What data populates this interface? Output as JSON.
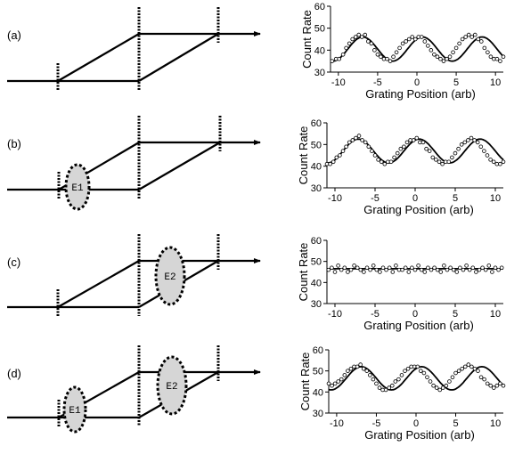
{
  "panels": [
    {
      "label": "(a)",
      "elements": [],
      "chart_data": {
        "type": "scatter",
        "xlabel": "Grating Position (arb)",
        "ylabel": "Count Rate",
        "xlim": [
          -11,
          11
        ],
        "ylim": [
          30,
          60
        ],
        "xticks": [
          "-10",
          "-5",
          "0",
          "5",
          "10"
        ],
        "yticks": [
          "30",
          "40",
          "50",
          "60"
        ],
        "fit": {
          "kind": "sinusoid",
          "mean": 40.5,
          "amplitude": 5.5,
          "period": 7.6,
          "phase_peak_x": 0.7
        },
        "series": [
          {
            "x": [
              -10.8,
              -10.3,
              -9.9,
              -9.4,
              -9,
              -8.6,
              -8.2,
              -7.8,
              -7.4,
              -7,
              -6.6,
              -6.2,
              -5.8,
              -5.4,
              -5,
              -4.6,
              -4.2,
              -3.8,
              -3.4,
              -3,
              -2.6,
              -2.2,
              -1.8,
              -1.4,
              -1,
              -0.6,
              -0.2,
              0.2,
              0.6,
              1,
              1.4,
              1.8,
              2.2,
              2.6,
              3,
              3.4,
              3.8,
              4.2,
              4.6,
              5,
              5.4,
              5.8,
              6.2,
              6.6,
              7,
              7.4,
              7.8,
              8.2,
              8.6,
              9,
              9.4,
              9.8,
              10.2,
              10.6,
              11
            ],
            "y": [
              35,
              36,
              36,
              38,
              41,
              43,
              45,
              46,
              47,
              46,
              47,
              44,
              43,
              40,
              38,
              37,
              36,
              36,
              35,
              37,
              39,
              41,
              43,
              44,
              45,
              46,
              45,
              46,
              46,
              44,
              42,
              40,
              38,
              37,
              36,
              35,
              36,
              37,
              39,
              41,
              43,
              45,
              46,
              47,
              46,
              47,
              45,
              44,
              41,
              39,
              37,
              36,
              36,
              35,
              37
            ]
          }
        ]
      }
    },
    {
      "label": "(b)",
      "elements": [
        {
          "label": "E1"
        }
      ],
      "chart_data": {
        "type": "scatter",
        "xlabel": "Grating Position (arb)",
        "ylabel": "Count Rate",
        "xlim": [
          -11,
          11
        ],
        "ylim": [
          30,
          60
        ],
        "xticks": [
          "-10",
          "-5",
          "0",
          "5",
          "10"
        ],
        "yticks": [
          "30",
          "40",
          "50",
          "60"
        ],
        "fit": {
          "kind": "sinusoid",
          "mean": 47,
          "amplitude": 5.5,
          "period": 7.6,
          "phase_peak_x": 0.5
        },
        "series": [
          {
            "x": [
              -11,
              -10.6,
              -10.2,
              -9.8,
              -9.4,
              -9,
              -8.6,
              -8.2,
              -7.8,
              -7.4,
              -7,
              -6.6,
              -6.2,
              -5.8,
              -5.4,
              -5,
              -4.6,
              -4.2,
              -3.8,
              -3.4,
              -3,
              -2.6,
              -2.2,
              -1.8,
              -1.4,
              -1,
              -0.6,
              -0.2,
              0.2,
              0.6,
              1,
              1.4,
              1.8,
              2.2,
              2.6,
              3,
              3.4,
              3.8,
              4.2,
              4.6,
              5,
              5.4,
              5.8,
              6.2,
              6.6,
              7,
              7.4,
              7.8,
              8.2,
              8.6,
              9,
              9.4,
              9.8,
              10.2,
              10.6,
              11
            ],
            "y": [
              41,
              41,
              42,
              44,
              45,
              47,
              49,
              51,
              52,
              53,
              54,
              52,
              51,
              49,
              47,
              45,
              43,
              42,
              41,
              42,
              42,
              44,
              46,
              48,
              49,
              51,
              52,
              52,
              53,
              51,
              51,
              48,
              47,
              44,
              43,
              42,
              41,
              42,
              42,
              44,
              46,
              48,
              50,
              51,
              52,
              53,
              52,
              51,
              49,
              47,
              45,
              43,
              42,
              41,
              41,
              42
            ]
          }
        ]
      }
    },
    {
      "label": "(c)",
      "elements": [
        {
          "label": "E2"
        }
      ],
      "chart_data": {
        "type": "scatter",
        "xlabel": "Grating Position (arb)",
        "ylabel": "Count Rate",
        "xlim": [
          -11,
          11
        ],
        "ylim": [
          30,
          60
        ],
        "xticks": [
          "-10",
          "-5",
          "0",
          "5",
          "10"
        ],
        "yticks": [
          "30",
          "40",
          "50",
          "60"
        ],
        "fit": {
          "kind": "constant",
          "value": 46.5
        },
        "series": [
          {
            "x": [
              -10.8,
              -10.4,
              -10,
              -9.6,
              -9.2,
              -8.8,
              -8.4,
              -8,
              -7.6,
              -7.2,
              -6.8,
              -6.4,
              -6,
              -5.6,
              -5.2,
              -4.8,
              -4.4,
              -4,
              -3.6,
              -3.2,
              -2.8,
              -2.4,
              -2,
              -1.6,
              -1.2,
              -0.8,
              -0.4,
              0,
              0.4,
              0.8,
              1.2,
              1.6,
              2,
              2.4,
              2.8,
              3.2,
              3.6,
              4,
              4.4,
              4.8,
              5.2,
              5.6,
              6,
              6.4,
              6.8,
              7.2,
              7.6,
              8,
              8.4,
              8.8,
              9.2,
              9.6,
              10,
              10.4,
              10.8
            ],
            "y": [
              46,
              47,
              45,
              48,
              46,
              47,
              45,
              46,
              48,
              47,
              46,
              45,
              47,
              46,
              48,
              46,
              45,
              47,
              46,
              47,
              45,
              48,
              46,
              46,
              47,
              45,
              47,
              46,
              48,
              46,
              45,
              47,
              46,
              47,
              46,
              45,
              48,
              46,
              47,
              46,
              45,
              47,
              46,
              48,
              46,
              47,
              45,
              46,
              47,
              46,
              48,
              45,
              47,
              46,
              47
            ]
          }
        ]
      }
    },
    {
      "label": "(d)",
      "elements": [
        {
          "label": "E1"
        },
        {
          "label": "E2"
        }
      ],
      "chart_data": {
        "type": "scatter",
        "xlabel": "Grating Position (arb)",
        "ylabel": "Count Rate",
        "xlim": [
          -11,
          11
        ],
        "ylim": [
          30,
          60
        ],
        "xticks": [
          "-10",
          "-5",
          "0",
          "5",
          "10"
        ],
        "yticks": [
          "30",
          "40",
          "50",
          "60"
        ],
        "fit": {
          "kind": "sinusoid",
          "mean": 46.5,
          "amplitude": 5.5,
          "period": 7.6,
          "phase_peak_x": 0.7
        },
        "series": [
          {
            "x": [
              -11,
              -10.6,
              -10.2,
              -9.8,
              -9.4,
              -9,
              -8.6,
              -8.2,
              -7.8,
              -7.4,
              -7,
              -6.6,
              -6.2,
              -5.8,
              -5.4,
              -5,
              -4.6,
              -4.2,
              -3.8,
              -3.4,
              -3,
              -2.6,
              -2.2,
              -1.8,
              -1.4,
              -1,
              -0.6,
              -0.2,
              0.2,
              0.6,
              1,
              1.4,
              1.8,
              2.2,
              2.6,
              3,
              3.4,
              3.8,
              4.2,
              4.6,
              5,
              5.4,
              5.8,
              6.2,
              6.6,
              7,
              7.4,
              7.8,
              8.2,
              8.6,
              9,
              9.4,
              9.8,
              10.2,
              10.6,
              11
            ],
            "y": [
              44,
              43,
              44,
              45,
              46,
              48,
              50,
              51,
              52,
              52,
              53,
              51,
              50,
              48,
              46,
              44,
              42,
              41,
              41,
              42,
              43,
              45,
              46,
              48,
              50,
              51,
              52,
              52,
              52,
              50,
              49,
              47,
              45,
              43,
              42,
              41,
              42,
              43,
              45,
              47,
              49,
              50,
              51,
              52,
              53,
              52,
              51,
              50,
              47,
              46,
              44,
              43,
              42,
              43,
              44,
              43
            ]
          }
        ]
      }
    }
  ]
}
